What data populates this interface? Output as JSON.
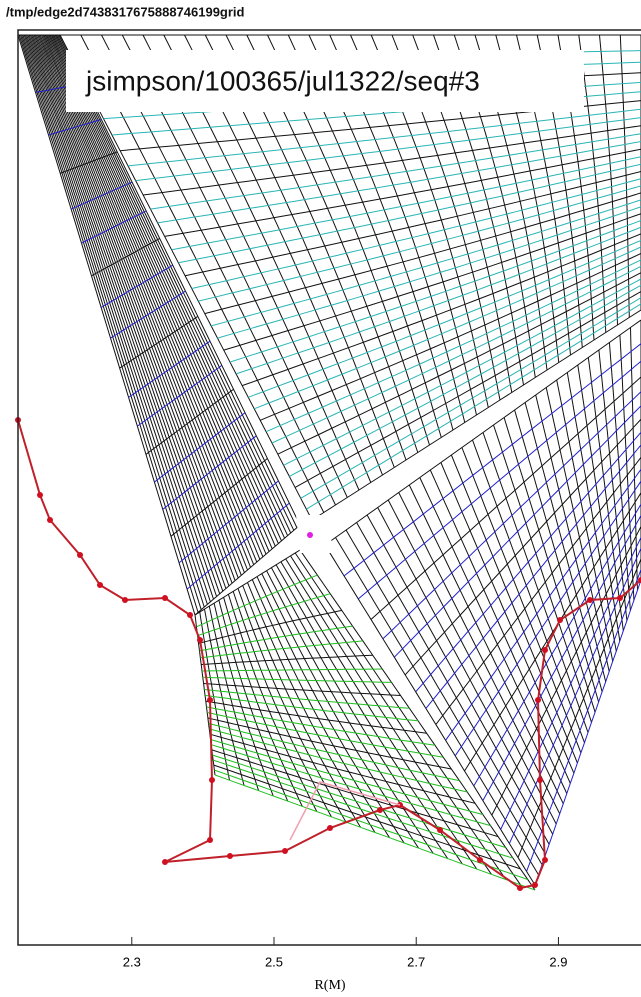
{
  "chart_data": {
    "type": "mesh",
    "title": "/tmp/edge2d7438317675888746199grid",
    "annotation": "jsimpson/100365/jul1322/seq#3",
    "xlabel": "R(M)",
    "xlim": [
      2.14,
      3.04
    ],
    "xticks": [
      2.3,
      2.5,
      2.7,
      2.9
    ]
  }
}
